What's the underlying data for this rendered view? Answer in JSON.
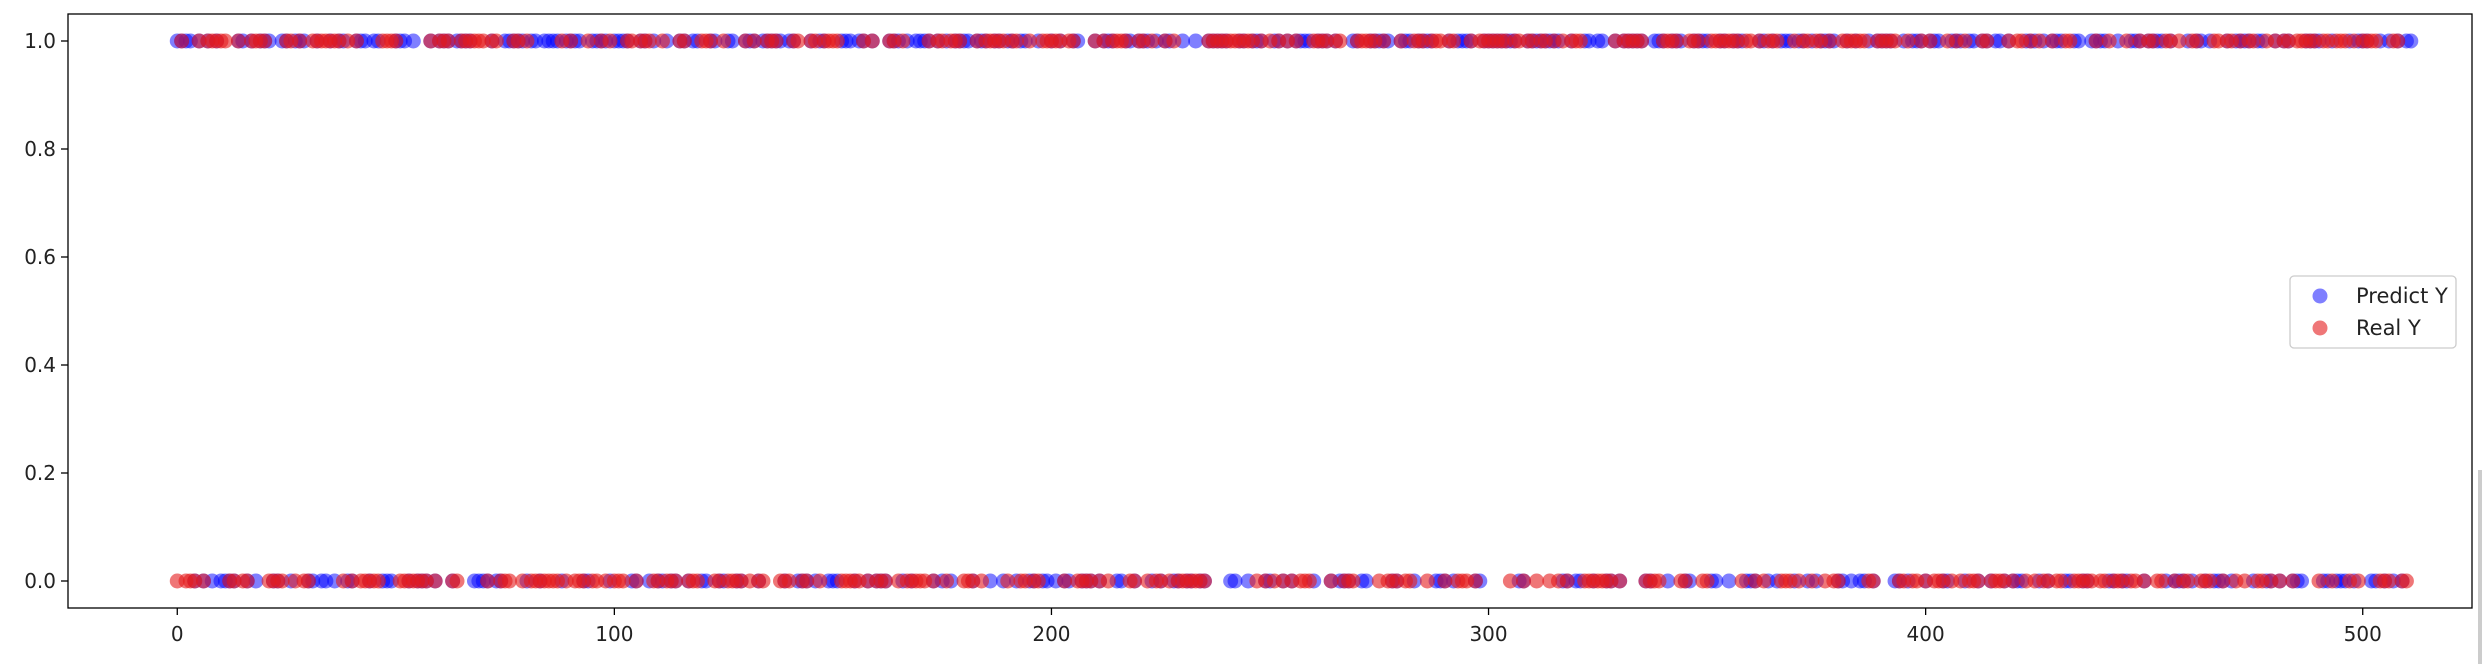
{
  "chart_data": {
    "type": "scatter",
    "title": "",
    "xlabel": "",
    "ylabel": "",
    "xlim": [
      -25,
      525
    ],
    "ylim": [
      -0.05,
      1.05
    ],
    "x_ticks": [
      0,
      100,
      200,
      300,
      400,
      500
    ],
    "x_tick_labels": [
      "0",
      "100",
      "200",
      "300",
      "400",
      "500"
    ],
    "y_ticks": [
      0.0,
      0.2,
      0.4,
      0.6,
      0.8,
      1.0
    ],
    "y_tick_labels": [
      "0.0",
      "0.2",
      "0.4",
      "0.6",
      "0.8",
      "1.0"
    ],
    "grid": false,
    "legend_position": "center-right",
    "x": "indices 0 to 499",
    "series": [
      {
        "name": "Predict Y",
        "color": "#0000ff",
        "alpha": 0.5,
        "values": [
          1,
          1,
          1,
          1,
          0,
          1,
          0,
          1,
          0,
          1,
          0,
          0,
          0,
          0,
          1,
          1,
          0,
          1,
          0,
          1,
          1,
          1,
          0,
          0,
          1,
          1,
          0,
          1,
          1,
          1,
          0,
          0,
          1,
          0,
          0,
          1,
          0,
          1,
          1,
          0,
          0,
          1,
          1,
          1,
          0,
          1,
          1,
          0,
          0,
          0,
          1,
          1,
          1,
          0,
          1,
          0,
          0,
          0,
          1,
          0,
          1,
          1,
          1,
          0,
          1,
          1,
          1,
          1,
          0,
          0,
          0,
          0,
          1,
          0,
          0,
          1,
          1,
          1,
          1,
          1,
          0,
          1,
          1,
          0,
          1,
          1,
          1,
          1,
          0,
          1,
          1,
          1,
          1,
          0,
          0,
          1,
          1,
          1,
          1,
          0,
          1,
          1,
          1,
          1,
          0,
          0,
          1,
          1,
          0,
          1,
          0,
          0,
          1,
          0,
          0,
          1,
          1,
          0,
          1,
          1,
          0,
          0,
          1,
          1,
          0,
          0,
          1,
          1,
          0,
          0,
          1,
          1,
          1,
          0,
          1,
          1,
          1,
          1,
          1,
          0,
          1,
          1,
          0,
          0,
          0,
          1,
          0,
          1,
          1,
          0,
          0,
          0,
          1,
          1,
          1,
          0,
          1,
          1,
          0,
          1,
          0,
          0,
          0,
          1,
          1,
          1,
          0,
          1,
          0,
          1,
          1,
          1,
          1,
          0,
          1,
          0,
          1,
          0,
          1,
          1,
          1,
          1,
          0,
          1,
          1,
          1,
          0,
          1,
          1,
          0,
          1,
          1,
          0,
          1,
          1,
          0,
          0,
          1,
          0,
          0,
          1,
          0,
          1,
          0,
          0,
          1,
          1,
          0,
          0,
          0,
          1,
          0,
          1,
          1,
          1,
          0,
          0,
          1,
          1,
          0,
          1,
          1,
          1,
          0,
          1,
          0,
          1,
          1,
          0,
          0,
          1,
          0,
          0,
          1,
          0,
          0,
          1,
          1,
          1,
          1,
          1,
          0,
          0,
          1,
          1,
          0,
          1,
          1,
          1,
          0,
          0,
          1,
          1,
          0,
          1,
          0,
          1,
          1,
          1,
          1,
          0,
          1,
          1,
          1,
          0,
          1,
          0,
          0,
          0,
          1,
          1,
          0,
          0,
          1,
          1,
          1,
          1,
          1,
          0,
          0,
          1,
          1,
          1,
          0,
          1,
          1,
          1,
          1,
          0,
          0,
          0,
          1,
          0,
          1,
          1,
          1,
          1,
          0,
          0,
          1,
          1,
          1,
          1,
          1,
          1,
          1,
          1,
          0,
          0,
          1,
          1,
          1,
          1,
          1,
          1,
          1,
          1,
          0,
          0,
          1,
          0,
          0,
          1,
          1,
          0,
          1,
          1,
          0,
          0,
          1,
          0,
          1,
          1,
          1,
          1,
          1,
          0,
          0,
          1,
          1,
          1,
          0,
          1,
          1,
          1,
          0,
          0,
          1,
          1,
          1,
          1,
          0,
          0,
          1,
          1,
          0,
          1,
          1,
          1,
          0,
          0,
          0,
          1,
          1,
          0,
          1,
          0,
          1,
          1,
          1,
          0,
          1,
          1,
          0,
          1,
          0,
          1,
          1,
          1,
          1,
          0,
          0,
          1,
          0,
          1,
          0,
          0,
          1,
          0,
          1,
          1,
          1,
          1,
          0,
          0,
          1,
          0,
          1,
          1,
          1,
          0,
          1,
          1,
          1,
          0,
          0,
          1,
          1,
          1,
          0,
          1,
          1,
          0,
          1,
          1,
          0,
          1,
          1,
          0,
          1,
          0,
          0,
          0,
          1,
          1,
          1,
          0,
          1,
          0,
          1,
          1,
          1,
          0,
          0,
          1,
          1,
          0,
          0,
          1,
          1,
          1,
          1,
          0,
          0,
          1,
          0,
          0,
          1,
          1,
          1,
          0,
          1,
          1,
          1,
          1,
          0,
          1,
          0,
          0,
          0,
          1,
          0,
          1,
          1,
          0,
          1,
          0,
          0,
          0,
          1,
          0,
          1,
          1,
          1,
          1,
          0,
          1,
          1,
          0,
          0,
          1,
          0,
          1,
          1,
          0,
          0,
          0,
          1,
          1,
          1,
          1,
          0,
          0,
          1,
          0,
          0,
          0,
          1,
          0,
          1,
          1,
          1,
          0,
          0,
          1,
          0,
          1,
          0,
          1,
          0,
          1,
          1
        ]
      },
      {
        "name": "Real Y",
        "color": "#e41a1c",
        "alpha": 0.6,
        "values": [
          0,
          1,
          0,
          0,
          0,
          1,
          0,
          1,
          1,
          1,
          1,
          1,
          0,
          0,
          1,
          0,
          0,
          1,
          1,
          1,
          1,
          0,
          0,
          0,
          0,
          1,
          1,
          0,
          1,
          0,
          0,
          1,
          1,
          1,
          1,
          1,
          1,
          1,
          0,
          1,
          0,
          1,
          0,
          0,
          0,
          0,
          0,
          1,
          1,
          1,
          1,
          0,
          0,
          0,
          0,
          0,
          0,
          0,
          1,
          0,
          1,
          1,
          1,
          0,
          0,
          1,
          1,
          1,
          1,
          1,
          1,
          0,
          1,
          1,
          0,
          0,
          0,
          1,
          1,
          0,
          1,
          0,
          0,
          0,
          0,
          0,
          0,
          0,
          1,
          0,
          1,
          0,
          0,
          0,
          1,
          0,
          0,
          1,
          0,
          1,
          0,
          0,
          0,
          1,
          1,
          0,
          1,
          1,
          1,
          0,
          0,
          1,
          0,
          0,
          0,
          1,
          1,
          0,
          0,
          0,
          1,
          1,
          1,
          0,
          0,
          1,
          0,
          0,
          0,
          0,
          1,
          0,
          1,
          0,
          0,
          1,
          1,
          1,
          0,
          0,
          0,
          1,
          1,
          0,
          0,
          1,
          1,
          0,
          1,
          1,
          1,
          1,
          0,
          0,
          0,
          0,
          0,
          1,
          0,
          1,
          0,
          0,
          0,
          1,
          1,
          0,
          1,
          0,
          0,
          0,
          0,
          0,
          1,
          0,
          1,
          1,
          0,
          1,
          1,
          1,
          0,
          0,
          0,
          1,
          0,
          1,
          1,
          1,
          1,
          1,
          0,
          1,
          1,
          0,
          0,
          1,
          0,
          0,
          1,
          1,
          1,
          1,
          1,
          0,
          1,
          1,
          0,
          0,
          0,
          0,
          1,
          0,
          1,
          0,
          1,
          1,
          1,
          1,
          0,
          0,
          1,
          1,
          0,
          1,
          0,
          0,
          1,
          0,
          1,
          0,
          0,
          0,
          0,
          0,
          0,
          0,
          1,
          1,
          1,
          1,
          1,
          1,
          1,
          1,
          1,
          1,
          1,
          0,
          1,
          0,
          1,
          0,
          1,
          0,
          1,
          0,
          1,
          0,
          0,
          0,
          1,
          1,
          1,
          1,
          0,
          1,
          1,
          0,
          0,
          0,
          1,
          1,
          1,
          1,
          1,
          0,
          1,
          0,
          0,
          0,
          1,
          0,
          0,
          1,
          1,
          1,
          0,
          1,
          1,
          1,
          0,
          1,
          1,
          0,
          0,
          0,
          1,
          0,
          1,
          1,
          1,
          1,
          1,
          1,
          1,
          0,
          1,
          1,
          0,
          1,
          1,
          0,
          1,
          1,
          0,
          1,
          0,
          1,
          0,
          1,
          1,
          1,
          0,
          0,
          0,
          0,
          0,
          0,
          0,
          1,
          0,
          1,
          1,
          1,
          1,
          1,
          0,
          0,
          0,
          0,
          1,
          1,
          1,
          1,
          0,
          0,
          1,
          1,
          1,
          0,
          0,
          1,
          1,
          1,
          1,
          1,
          1,
          1,
          0,
          1,
          1,
          0,
          1,
          0,
          1,
          1,
          1,
          0,
          0,
          0,
          1,
          0,
          1,
          1,
          0,
          1,
          1,
          0,
          1,
          0,
          0,
          1,
          1,
          1,
          1,
          1,
          1,
          0,
          0,
          1,
          1,
          1,
          1,
          1,
          0,
          0,
          1,
          0,
          0,
          1,
          0,
          1,
          0,
          0,
          0,
          1,
          0,
          1,
          0,
          1,
          0,
          0,
          0,
          1,
          1,
          0,
          0,
          0,
          0,
          1,
          0,
          1,
          1,
          0,
          1,
          0,
          1,
          0,
          0,
          1,
          0,
          0,
          1,
          1,
          0,
          0,
          0,
          0,
          0,
          1,
          0,
          0,
          1,
          0,
          0,
          0,
          1,
          0,
          0,
          1,
          0,
          1,
          1,
          0,
          0,
          1,
          1,
          0,
          1,
          0,
          0,
          1,
          1,
          0,
          0,
          0,
          1,
          1,
          0,
          1,
          1,
          0,
          1,
          0,
          1,
          1,
          0,
          0,
          1,
          0,
          1,
          0,
          1,
          1,
          0,
          1,
          1,
          1,
          1,
          1,
          0,
          1,
          1,
          0,
          1,
          1,
          1,
          0,
          1,
          0,
          1,
          1,
          1,
          1,
          0,
          0,
          0,
          1,
          1,
          0,
          0
        ]
      }
    ]
  }
}
